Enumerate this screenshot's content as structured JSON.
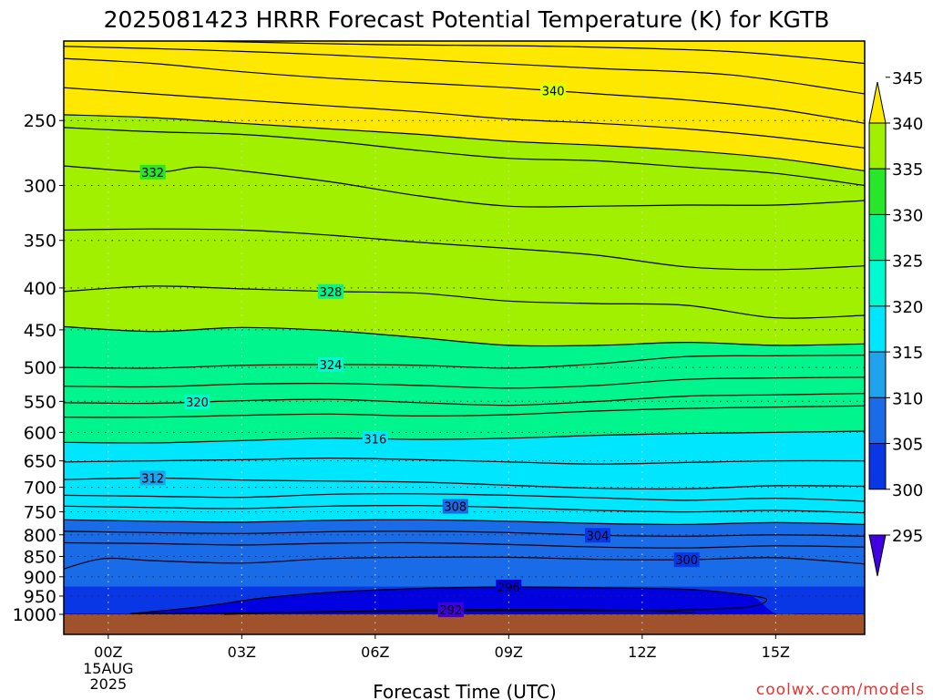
{
  "chart_data": {
    "type": "heatmap",
    "title": "2025081423 HRRR Forecast Potential Temperature (K) for KGTB",
    "xlabel": "Forecast Time (UTC)",
    "ylabel": "",
    "credit": "coolwx.com/models",
    "x_range_hours": [
      -1,
      17
    ],
    "y_range_hpa": [
      1000,
      200
    ],
    "y_ticks": [
      250,
      300,
      350,
      400,
      450,
      500,
      550,
      600,
      650,
      700,
      750,
      800,
      850,
      900,
      950,
      1000
    ],
    "y_tick_labels": [
      "250",
      "300",
      "350",
      "400",
      "450",
      "500",
      "550",
      "600",
      "650",
      "700",
      "750",
      "800",
      "850",
      "900",
      "950",
      "1000"
    ],
    "x_ticks": [
      {
        "hour": 0,
        "label": "00Z",
        "sub1": "15AUG",
        "sub2": "2025"
      },
      {
        "hour": 3,
        "label": "03Z",
        "sub1": "",
        "sub2": ""
      },
      {
        "hour": 6,
        "label": "06Z",
        "sub1": "",
        "sub2": ""
      },
      {
        "hour": 9,
        "label": "09Z",
        "sub1": "",
        "sub2": ""
      },
      {
        "hour": 12,
        "label": "12Z",
        "sub1": "",
        "sub2": ""
      },
      {
        "hour": 15,
        "label": "15Z",
        "sub1": "",
        "sub2": ""
      }
    ],
    "grid": true,
    "colorbar": {
      "labels": [
        "295",
        "300",
        "305",
        "310",
        "315",
        "320",
        "325",
        "330",
        "335",
        "340",
        "345"
      ],
      "bins": [
        {
          "lo": 295,
          "hi": 300,
          "color": "#0000e0"
        },
        {
          "lo": 300,
          "hi": 305,
          "color": "#0a37e6"
        },
        {
          "lo": 305,
          "hi": 310,
          "color": "#1a6be8"
        },
        {
          "lo": 310,
          "hi": 315,
          "color": "#1ea3ec"
        },
        {
          "lo": 315,
          "hi": 320,
          "color": "#00e6ff"
        },
        {
          "lo": 320,
          "hi": 325,
          "color": "#00fad2"
        },
        {
          "lo": 325,
          "hi": 330,
          "color": "#00f58c"
        },
        {
          "lo": 330,
          "hi": 335,
          "color": "#28e628"
        },
        {
          "lo": 335,
          "hi": 340,
          "color": "#a0f000"
        },
        {
          "lo": 340,
          "hi": 345,
          "color": "#dcff00"
        }
      ],
      "under_color": "#4000e0",
      "over_color": "#ffe800"
    },
    "below_ground_color": "#a0522d",
    "contours": [
      {
        "theta": 292,
        "labeled": true,
        "label_hour": 7.7,
        "points": [
          [
            2.6,
            1000
          ],
          [
            4,
            995
          ],
          [
            6,
            990
          ],
          [
            8,
            987
          ],
          [
            10,
            987
          ],
          [
            12,
            990
          ],
          [
            13.2,
            995
          ]
        ]
      },
      {
        "theta": 296,
        "labeled": true,
        "label_hour": 9.0,
        "points": [
          [
            0.5,
            998
          ],
          [
            2,
            980
          ],
          [
            3.5,
            955
          ],
          [
            5,
            940
          ],
          [
            7,
            930
          ],
          [
            9,
            926
          ],
          [
            11,
            928
          ],
          [
            13,
            932
          ],
          [
            14.2,
            945
          ],
          [
            14.8,
            960
          ],
          [
            14.2,
            982
          ],
          [
            12,
            990
          ],
          [
            9,
            990
          ],
          [
            6,
            992
          ],
          [
            3.5,
            996
          ],
          [
            2,
            998
          ],
          [
            0.5,
            998
          ]
        ]
      },
      {
        "theta": 300,
        "labeled": true,
        "label_hour": 13.0,
        "points": [
          [
            -1,
            880
          ],
          [
            -0.1,
            855
          ],
          [
            1,
            860
          ],
          [
            3,
            866
          ],
          [
            5,
            855
          ],
          [
            7,
            852
          ],
          [
            9,
            852
          ],
          [
            11,
            857
          ],
          [
            13,
            858
          ],
          [
            15,
            853
          ],
          [
            17,
            868
          ]
        ]
      },
      {
        "theta": 302,
        "labeled": false,
        "label_hour": null,
        "points": [
          [
            -1,
            818
          ],
          [
            1,
            820
          ],
          [
            3,
            823
          ],
          [
            5,
            819
          ],
          [
            7,
            818
          ],
          [
            9,
            822
          ],
          [
            11,
            828
          ],
          [
            13,
            830
          ],
          [
            15,
            825
          ],
          [
            17,
            828
          ]
        ]
      },
      {
        "theta": 304,
        "labeled": true,
        "label_hour": 11.0,
        "points": [
          [
            -1,
            792
          ],
          [
            1,
            795
          ],
          [
            3,
            797
          ],
          [
            5,
            793
          ],
          [
            7,
            792
          ],
          [
            9,
            795
          ],
          [
            11,
            801
          ],
          [
            13,
            803
          ],
          [
            15,
            800
          ],
          [
            17,
            803
          ]
        ]
      },
      {
        "theta": 306,
        "labeled": false,
        "label_hour": null,
        "points": [
          [
            -1,
            767
          ],
          [
            1,
            770
          ],
          [
            3,
            772
          ],
          [
            5,
            768
          ],
          [
            7,
            767
          ],
          [
            9,
            770
          ],
          [
            11,
            775
          ],
          [
            13,
            777
          ],
          [
            15,
            773
          ],
          [
            17,
            777
          ]
        ]
      },
      {
        "theta": 308,
        "labeled": true,
        "label_hour": 7.8,
        "points": [
          [
            -1,
            738
          ],
          [
            1,
            741
          ],
          [
            3,
            743
          ],
          [
            5,
            738
          ],
          [
            7,
            737
          ],
          [
            9,
            741
          ],
          [
            11,
            747
          ],
          [
            13,
            750
          ],
          [
            15,
            747
          ],
          [
            17,
            752
          ]
        ]
      },
      {
        "theta": 310,
        "labeled": false,
        "label_hour": null,
        "points": [
          [
            -1,
            716
          ],
          [
            1,
            718
          ],
          [
            3,
            720
          ],
          [
            5,
            714
          ],
          [
            7,
            713
          ],
          [
            9,
            716
          ],
          [
            11,
            721
          ],
          [
            13,
            726
          ],
          [
            15,
            722
          ],
          [
            17,
            728
          ]
        ]
      },
      {
        "theta": 312,
        "labeled": true,
        "label_hour": 1.0,
        "points": [
          [
            -1,
            685
          ],
          [
            1,
            682
          ],
          [
            3,
            686
          ],
          [
            5,
            688
          ],
          [
            7,
            690
          ],
          [
            9,
            696
          ],
          [
            11,
            702
          ],
          [
            13,
            703
          ],
          [
            15,
            697
          ],
          [
            17,
            698
          ]
        ]
      },
      {
        "theta": 314,
        "labeled": false,
        "label_hour": null,
        "points": [
          [
            -1,
            652
          ],
          [
            1,
            650
          ],
          [
            3,
            648
          ],
          [
            5,
            645
          ],
          [
            7,
            648
          ],
          [
            9,
            652
          ],
          [
            11,
            656
          ],
          [
            13,
            653
          ],
          [
            15,
            650
          ],
          [
            17,
            650
          ]
        ]
      },
      {
        "theta": 316,
        "labeled": true,
        "label_hour": 6.0,
        "points": [
          [
            -1,
            617
          ],
          [
            1,
            618
          ],
          [
            3,
            614
          ],
          [
            5,
            610
          ],
          [
            7,
            612
          ],
          [
            9,
            610
          ],
          [
            11,
            605
          ],
          [
            13,
            602
          ],
          [
            15,
            600
          ],
          [
            17,
            598
          ]
        ]
      },
      {
        "theta": 318,
        "labeled": false,
        "label_hour": null,
        "points": [
          [
            -1,
            575
          ],
          [
            1,
            575
          ],
          [
            3,
            572
          ],
          [
            5,
            570
          ],
          [
            7,
            573
          ],
          [
            9,
            571
          ],
          [
            11,
            565
          ],
          [
            13,
            561
          ],
          [
            15,
            559
          ],
          [
            17,
            557
          ]
        ]
      },
      {
        "theta": 320,
        "labeled": true,
        "label_hour": 2.0,
        "points": [
          [
            -1,
            552
          ],
          [
            1,
            553
          ],
          [
            3,
            549
          ],
          [
            5,
            547
          ],
          [
            7,
            552
          ],
          [
            9,
            556
          ],
          [
            11,
            550
          ],
          [
            13,
            542
          ],
          [
            15,
            540
          ],
          [
            17,
            538
          ]
        ]
      },
      {
        "theta": 322,
        "labeled": false,
        "label_hour": null,
        "points": [
          [
            -1,
            527
          ],
          [
            1,
            528
          ],
          [
            3,
            524
          ],
          [
            5,
            523
          ],
          [
            7,
            526
          ],
          [
            9,
            530
          ],
          [
            11,
            526
          ],
          [
            13,
            517
          ],
          [
            15,
            515
          ],
          [
            17,
            514
          ]
        ]
      },
      {
        "theta": 324,
        "labeled": true,
        "label_hour": 5.0,
        "points": [
          [
            -1,
            500
          ],
          [
            1,
            501
          ],
          [
            3,
            497
          ],
          [
            5,
            496
          ],
          [
            7,
            497
          ],
          [
            9,
            501
          ],
          [
            11,
            495
          ],
          [
            13,
            485
          ],
          [
            15,
            484
          ],
          [
            17,
            483
          ]
        ]
      },
      {
        "theta": 326,
        "labeled": false,
        "label_hour": null,
        "points": [
          [
            -1,
            446
          ],
          [
            1,
            452
          ],
          [
            3,
            447
          ],
          [
            5,
            451
          ],
          [
            7,
            460
          ],
          [
            9,
            470
          ],
          [
            11,
            470
          ],
          [
            13,
            466
          ],
          [
            15,
            470
          ],
          [
            17,
            468
          ]
        ]
      },
      {
        "theta": 328,
        "labeled": true,
        "label_hour": 5.0,
        "points": [
          [
            -1,
            404
          ],
          [
            1,
            398
          ],
          [
            3,
            401
          ],
          [
            5,
            404
          ],
          [
            7,
            406
          ],
          [
            9,
            415
          ],
          [
            11,
            418
          ],
          [
            13,
            420
          ],
          [
            15,
            435
          ],
          [
            17,
            432
          ]
        ]
      },
      {
        "theta": 330,
        "labeled": false,
        "label_hour": null,
        "points": [
          [
            -1,
            340
          ],
          [
            1,
            339
          ],
          [
            3,
            340
          ],
          [
            5,
            345
          ],
          [
            7,
            352
          ],
          [
            9,
            358
          ],
          [
            11,
            365
          ],
          [
            13,
            377
          ],
          [
            15,
            380
          ],
          [
            17,
            376
          ]
        ]
      },
      {
        "theta": 332,
        "labeled": true,
        "label_hour": 1.0,
        "points": [
          [
            -1,
            284
          ],
          [
            1,
            289
          ],
          [
            2,
            285
          ],
          [
            3,
            288
          ],
          [
            5,
            297
          ],
          [
            7,
            309
          ],
          [
            9,
            318
          ],
          [
            11,
            318
          ],
          [
            13,
            317
          ],
          [
            15,
            317
          ],
          [
            17,
            313
          ]
        ]
      },
      {
        "theta": 334,
        "labeled": false,
        "label_hour": null,
        "points": [
          [
            -1,
            255
          ],
          [
            1,
            258
          ],
          [
            3,
            260
          ],
          [
            5,
            265
          ],
          [
            7,
            272
          ],
          [
            9,
            278
          ],
          [
            11,
            280
          ],
          [
            13,
            285
          ],
          [
            15,
            290
          ],
          [
            17,
            300
          ]
        ]
      },
      {
        "theta": 336,
        "labeled": false,
        "label_hour": null,
        "points": [
          [
            -1,
            246
          ],
          [
            1,
            248
          ],
          [
            3,
            252
          ],
          [
            5,
            256
          ],
          [
            7,
            260
          ],
          [
            9,
            265
          ],
          [
            11,
            268
          ],
          [
            13,
            272
          ],
          [
            15,
            278
          ],
          [
            17,
            288
          ]
        ]
      },
      {
        "theta": 338,
        "labeled": false,
        "label_hour": null,
        "points": [
          [
            -1,
            228
          ],
          [
            1,
            232
          ],
          [
            3,
            236
          ],
          [
            5,
            240
          ],
          [
            7,
            244
          ],
          [
            9,
            249
          ],
          [
            11,
            252
          ],
          [
            13,
            256
          ],
          [
            15,
            262
          ],
          [
            17,
            270
          ]
        ]
      },
      {
        "theta": 340,
        "labeled": true,
        "label_hour": 10.0,
        "points": [
          [
            -1,
            210
          ],
          [
            1,
            213
          ],
          [
            3,
            218
          ],
          [
            5,
            222
          ],
          [
            7,
            225
          ],
          [
            9,
            228
          ],
          [
            11,
            232
          ],
          [
            13,
            236
          ],
          [
            15,
            242
          ],
          [
            17,
            252
          ]
        ]
      },
      {
        "theta": 342,
        "labeled": false,
        "label_hour": null,
        "points": [
          [
            -1,
            203
          ],
          [
            2,
            205
          ],
          [
            5,
            208
          ],
          [
            8,
            212
          ],
          [
            11,
            216
          ],
          [
            14,
            220
          ],
          [
            17,
            232
          ]
        ]
      },
      {
        "theta": 344,
        "labeled": false,
        "label_hour": null,
        "points": [
          [
            2,
            200
          ],
          [
            6,
            202
          ],
          [
            10,
            203
          ],
          [
            14,
            206
          ],
          [
            17,
            213
          ]
        ]
      }
    ]
  }
}
